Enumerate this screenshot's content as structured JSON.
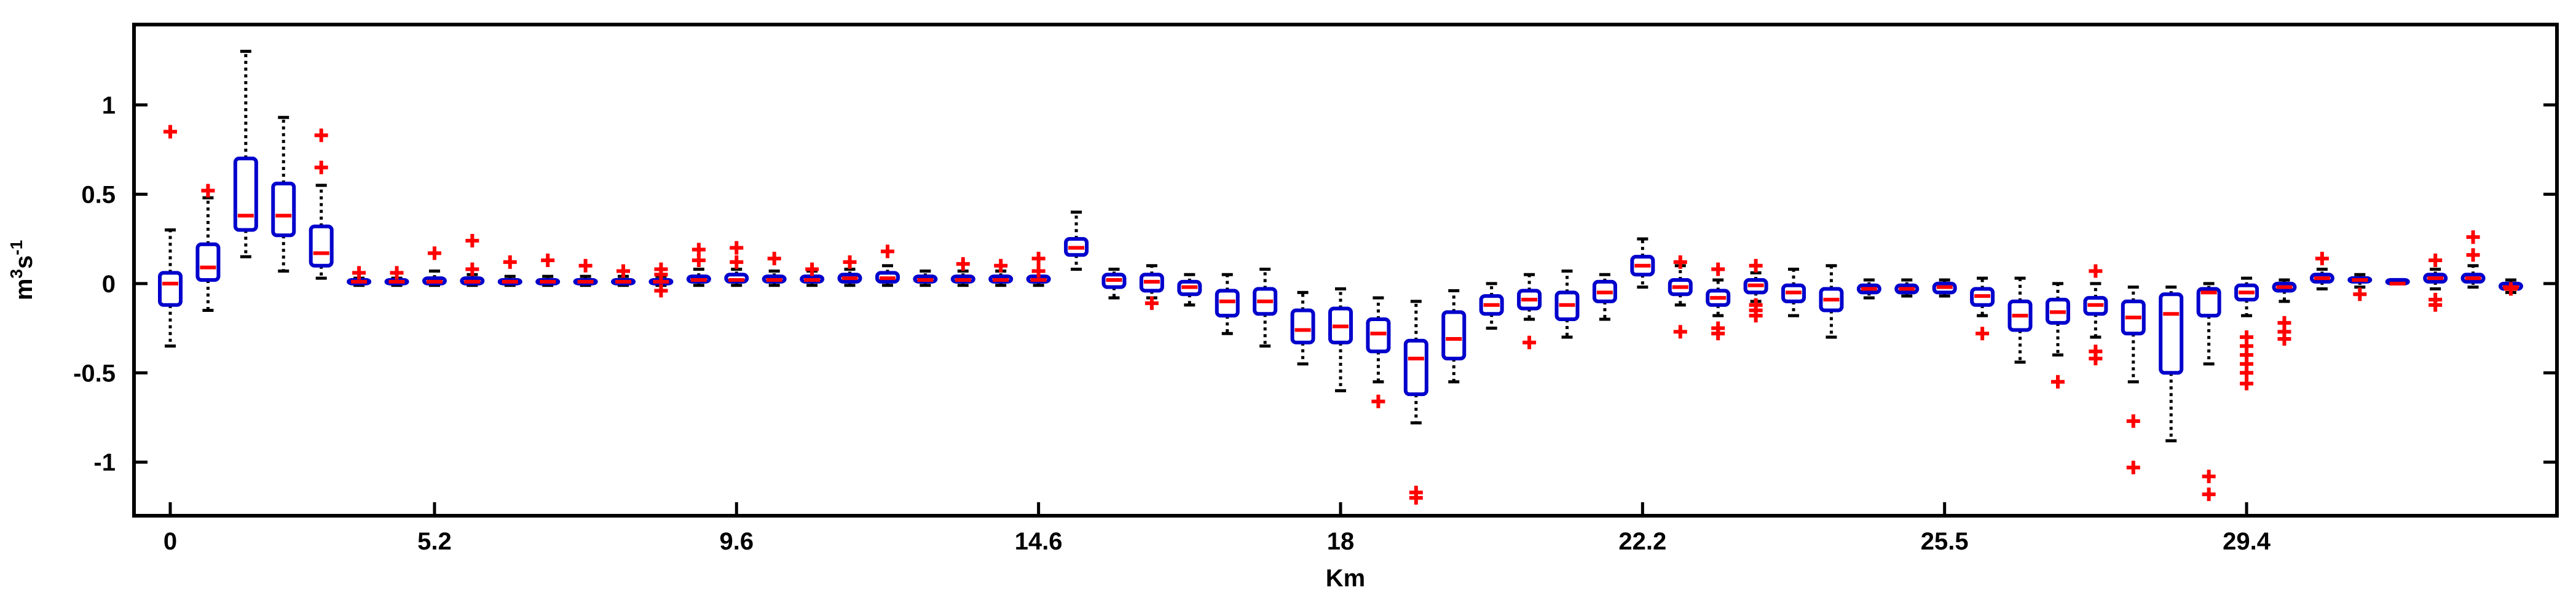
{
  "chart_data": {
    "type": "box",
    "title": "",
    "xlabel": "Km",
    "ylabel_base": "m",
    "ylabel_sup1": "3",
    "ylabel_mid": "s",
    "ylabel_sup2": "-1",
    "ylim": [
      -1.3,
      1.45
    ],
    "yticks": [
      1,
      0.5,
      0,
      -0.5,
      -1
    ],
    "ytick_labels": [
      "1",
      "0.5",
      "0",
      "-0.5",
      "-1"
    ],
    "xtick_labels": [
      {
        "label": "0",
        "box_index": 0
      },
      {
        "label": "5.2",
        "box_index": 7
      },
      {
        "label": "9.6",
        "box_index": 15
      },
      {
        "label": "14.6",
        "box_index": 23
      },
      {
        "label": "18",
        "box_index": 31
      },
      {
        "label": "22.2",
        "box_index": 39
      },
      {
        "label": "25.5",
        "box_index": 47
      },
      {
        "label": "29.4",
        "box_index": 55
      }
    ],
    "grid": false,
    "colors": {
      "box": "#0000cc",
      "median": "#ff0000",
      "outlier": "#ff0000",
      "whisker": "#000000"
    },
    "boxes": [
      {
        "q1": -0.12,
        "median": 0.0,
        "q3": 0.06,
        "wlo": -0.35,
        "whi": 0.3,
        "outliers": [
          0.85
        ]
      },
      {
        "q1": 0.02,
        "median": 0.09,
        "q3": 0.22,
        "wlo": -0.15,
        "whi": 0.48,
        "outliers": [
          0.52
        ]
      },
      {
        "q1": 0.3,
        "median": 0.38,
        "q3": 0.7,
        "wlo": 0.15,
        "whi": 1.3,
        "outliers": []
      },
      {
        "q1": 0.27,
        "median": 0.38,
        "q3": 0.56,
        "wlo": 0.07,
        "whi": 0.93,
        "outliers": []
      },
      {
        "q1": 0.1,
        "median": 0.17,
        "q3": 0.32,
        "wlo": 0.03,
        "whi": 0.55,
        "outliers": [
          0.65,
          0.83
        ]
      },
      {
        "q1": 0.0,
        "median": 0.01,
        "q3": 0.02,
        "wlo": -0.01,
        "whi": 0.03,
        "outliers": [
          0.06
        ]
      },
      {
        "q1": 0.0,
        "median": 0.01,
        "q3": 0.02,
        "wlo": -0.01,
        "whi": 0.03,
        "outliers": [
          0.06
        ]
      },
      {
        "q1": 0.0,
        "median": 0.01,
        "q3": 0.03,
        "wlo": -0.01,
        "whi": 0.07,
        "outliers": [
          0.17
        ]
      },
      {
        "q1": 0.0,
        "median": 0.01,
        "q3": 0.03,
        "wlo": -0.01,
        "whi": 0.05,
        "outliers": [
          0.08,
          0.24
        ]
      },
      {
        "q1": 0.0,
        "median": 0.01,
        "q3": 0.02,
        "wlo": -0.01,
        "whi": 0.04,
        "outliers": [
          0.12
        ]
      },
      {
        "q1": 0.0,
        "median": 0.01,
        "q3": 0.02,
        "wlo": -0.01,
        "whi": 0.04,
        "outliers": [
          0.13
        ]
      },
      {
        "q1": 0.0,
        "median": 0.01,
        "q3": 0.02,
        "wlo": -0.01,
        "whi": 0.04,
        "outliers": [
          0.1
        ]
      },
      {
        "q1": 0.0,
        "median": 0.01,
        "q3": 0.02,
        "wlo": -0.01,
        "whi": 0.04,
        "outliers": [
          0.07
        ]
      },
      {
        "q1": 0.0,
        "median": 0.01,
        "q3": 0.02,
        "wlo": -0.01,
        "whi": 0.04,
        "outliers": [
          0.08,
          -0.04,
          0.05
        ]
      },
      {
        "q1": 0.01,
        "median": 0.02,
        "q3": 0.04,
        "wlo": -0.01,
        "whi": 0.08,
        "outliers": [
          0.19,
          0.13
        ]
      },
      {
        "q1": 0.01,
        "median": 0.02,
        "q3": 0.05,
        "wlo": -0.01,
        "whi": 0.08,
        "outliers": [
          0.2,
          0.12
        ]
      },
      {
        "q1": 0.01,
        "median": 0.02,
        "q3": 0.04,
        "wlo": -0.01,
        "whi": 0.07,
        "outliers": [
          0.14
        ]
      },
      {
        "q1": 0.01,
        "median": 0.02,
        "q3": 0.04,
        "wlo": -0.01,
        "whi": 0.07,
        "outliers": [
          0.08
        ]
      },
      {
        "q1": 0.01,
        "median": 0.03,
        "q3": 0.05,
        "wlo": -0.01,
        "whi": 0.08,
        "outliers": [
          0.12
        ]
      },
      {
        "q1": 0.01,
        "median": 0.03,
        "q3": 0.06,
        "wlo": -0.01,
        "whi": 0.1,
        "outliers": [
          0.18
        ]
      },
      {
        "q1": 0.01,
        "median": 0.02,
        "q3": 0.04,
        "wlo": -0.01,
        "whi": 0.07,
        "outliers": []
      },
      {
        "q1": 0.01,
        "median": 0.02,
        "q3": 0.04,
        "wlo": -0.01,
        "whi": 0.07,
        "outliers": [
          0.11
        ]
      },
      {
        "q1": 0.01,
        "median": 0.02,
        "q3": 0.04,
        "wlo": -0.01,
        "whi": 0.07,
        "outliers": [
          0.1
        ]
      },
      {
        "q1": 0.01,
        "median": 0.02,
        "q3": 0.04,
        "wlo": -0.01,
        "whi": 0.07,
        "outliers": [
          0.14,
          0.07
        ]
      },
      {
        "q1": 0.16,
        "median": 0.2,
        "q3": 0.25,
        "wlo": 0.08,
        "whi": 0.4,
        "outliers": []
      },
      {
        "q1": -0.02,
        "median": 0.02,
        "q3": 0.05,
        "wlo": -0.08,
        "whi": 0.08,
        "outliers": []
      },
      {
        "q1": -0.04,
        "median": 0.01,
        "q3": 0.05,
        "wlo": -0.08,
        "whi": 0.1,
        "outliers": [
          -0.11
        ]
      },
      {
        "q1": -0.06,
        "median": -0.02,
        "q3": 0.01,
        "wlo": -0.12,
        "whi": 0.05,
        "outliers": []
      },
      {
        "q1": -0.18,
        "median": -0.1,
        "q3": -0.04,
        "wlo": -0.28,
        "whi": 0.05,
        "outliers": []
      },
      {
        "q1": -0.17,
        "median": -0.1,
        "q3": -0.03,
        "wlo": -0.35,
        "whi": 0.08,
        "outliers": []
      },
      {
        "q1": -0.33,
        "median": -0.26,
        "q3": -0.15,
        "wlo": -0.45,
        "whi": -0.05,
        "outliers": []
      },
      {
        "q1": -0.33,
        "median": -0.24,
        "q3": -0.14,
        "wlo": -0.6,
        "whi": -0.03,
        "outliers": []
      },
      {
        "q1": -0.38,
        "median": -0.28,
        "q3": -0.2,
        "wlo": -0.55,
        "whi": -0.08,
        "outliers": [
          -0.66
        ]
      },
      {
        "q1": -0.62,
        "median": -0.42,
        "q3": -0.32,
        "wlo": -0.78,
        "whi": -0.1,
        "outliers": [
          -1.17,
          -1.2
        ]
      },
      {
        "q1": -0.42,
        "median": -0.31,
        "q3": -0.16,
        "wlo": -0.55,
        "whi": -0.04,
        "outliers": []
      },
      {
        "q1": -0.17,
        "median": -0.12,
        "q3": -0.07,
        "wlo": -0.25,
        "whi": 0.0,
        "outliers": []
      },
      {
        "q1": -0.14,
        "median": -0.09,
        "q3": -0.04,
        "wlo": -0.2,
        "whi": 0.05,
        "outliers": [
          -0.33
        ]
      },
      {
        "q1": -0.2,
        "median": -0.12,
        "q3": -0.05,
        "wlo": -0.3,
        "whi": 0.07,
        "outliers": []
      },
      {
        "q1": -0.1,
        "median": -0.05,
        "q3": 0.01,
        "wlo": -0.2,
        "whi": 0.05,
        "outliers": []
      },
      {
        "q1": 0.05,
        "median": 0.1,
        "q3": 0.15,
        "wlo": -0.02,
        "whi": 0.25,
        "outliers": []
      },
      {
        "q1": -0.06,
        "median": -0.02,
        "q3": 0.02,
        "wlo": -0.12,
        "whi": 0.1,
        "outliers": [
          0.12,
          -0.27
        ]
      },
      {
        "q1": -0.12,
        "median": -0.08,
        "q3": -0.04,
        "wlo": -0.18,
        "whi": 0.02,
        "outliers": [
          -0.25,
          -0.28,
          0.08
        ]
      },
      {
        "q1": -0.05,
        "median": -0.01,
        "q3": 0.02,
        "wlo": -0.1,
        "whi": 0.06,
        "outliers": [
          0.1,
          -0.12,
          -0.15,
          -0.18
        ]
      },
      {
        "q1": -0.1,
        "median": -0.05,
        "q3": -0.01,
        "wlo": -0.18,
        "whi": 0.08,
        "outliers": []
      },
      {
        "q1": -0.15,
        "median": -0.09,
        "q3": -0.03,
        "wlo": -0.3,
        "whi": 0.1,
        "outliers": []
      },
      {
        "q1": -0.05,
        "median": -0.03,
        "q3": -0.01,
        "wlo": -0.08,
        "whi": 0.02,
        "outliers": []
      },
      {
        "q1": -0.05,
        "median": -0.03,
        "q3": -0.01,
        "wlo": -0.07,
        "whi": 0.02,
        "outliers": []
      },
      {
        "q1": -0.05,
        "median": -0.02,
        "q3": 0.0,
        "wlo": -0.07,
        "whi": 0.02,
        "outliers": []
      },
      {
        "q1": -0.12,
        "median": -0.07,
        "q3": -0.03,
        "wlo": -0.18,
        "whi": 0.03,
        "outliers": [
          -0.28
        ]
      },
      {
        "q1": -0.26,
        "median": -0.18,
        "q3": -0.1,
        "wlo": -0.44,
        "whi": 0.03,
        "outliers": []
      },
      {
        "q1": -0.22,
        "median": -0.16,
        "q3": -0.09,
        "wlo": -0.4,
        "whi": 0.0,
        "outliers": [
          -0.55
        ]
      },
      {
        "q1": -0.17,
        "median": -0.12,
        "q3": -0.08,
        "wlo": -0.3,
        "whi": 0.0,
        "outliers": [
          0.07,
          -0.38,
          -0.42
        ]
      },
      {
        "q1": -0.28,
        "median": -0.19,
        "q3": -0.1,
        "wlo": -0.55,
        "whi": -0.02,
        "outliers": [
          -0.77,
          -1.03
        ]
      },
      {
        "q1": -0.5,
        "median": -0.17,
        "q3": -0.06,
        "wlo": -0.88,
        "whi": -0.02,
        "outliers": []
      },
      {
        "q1": -0.18,
        "median": -0.05,
        "q3": -0.03,
        "wlo": -0.45,
        "whi": 0.0,
        "outliers": [
          -1.08,
          -1.18
        ]
      },
      {
        "q1": -0.09,
        "median": -0.05,
        "q3": -0.01,
        "wlo": -0.18,
        "whi": 0.03,
        "outliers": [
          -0.3,
          -0.35,
          -0.4,
          -0.45,
          -0.5,
          -0.56
        ]
      },
      {
        "q1": -0.04,
        "median": -0.02,
        "q3": 0.0,
        "wlo": -0.1,
        "whi": 0.02,
        "outliers": [
          -0.22,
          -0.27,
          -0.31
        ]
      },
      {
        "q1": 0.01,
        "median": 0.03,
        "q3": 0.05,
        "wlo": -0.03,
        "whi": 0.08,
        "outliers": [
          0.14
        ]
      },
      {
        "q1": 0.01,
        "median": 0.02,
        "q3": 0.03,
        "wlo": -0.02,
        "whi": 0.05,
        "outliers": [
          -0.06
        ]
      },
      {
        "q1": 0.0,
        "median": 0.0,
        "q3": 0.0,
        "wlo": 0.0,
        "whi": 0.0,
        "outliers": []
      },
      {
        "q1": 0.01,
        "median": 0.03,
        "q3": 0.05,
        "wlo": -0.03,
        "whi": 0.08,
        "outliers": [
          0.13,
          -0.09,
          -0.12
        ]
      },
      {
        "q1": 0.01,
        "median": 0.03,
        "q3": 0.05,
        "wlo": -0.02,
        "whi": 0.1,
        "outliers": [
          0.26,
          0.16
        ]
      },
      {
        "q1": -0.03,
        "median": -0.02,
        "q3": 0.0,
        "wlo": -0.05,
        "whi": 0.02,
        "outliers": [
          -0.03
        ]
      }
    ]
  }
}
